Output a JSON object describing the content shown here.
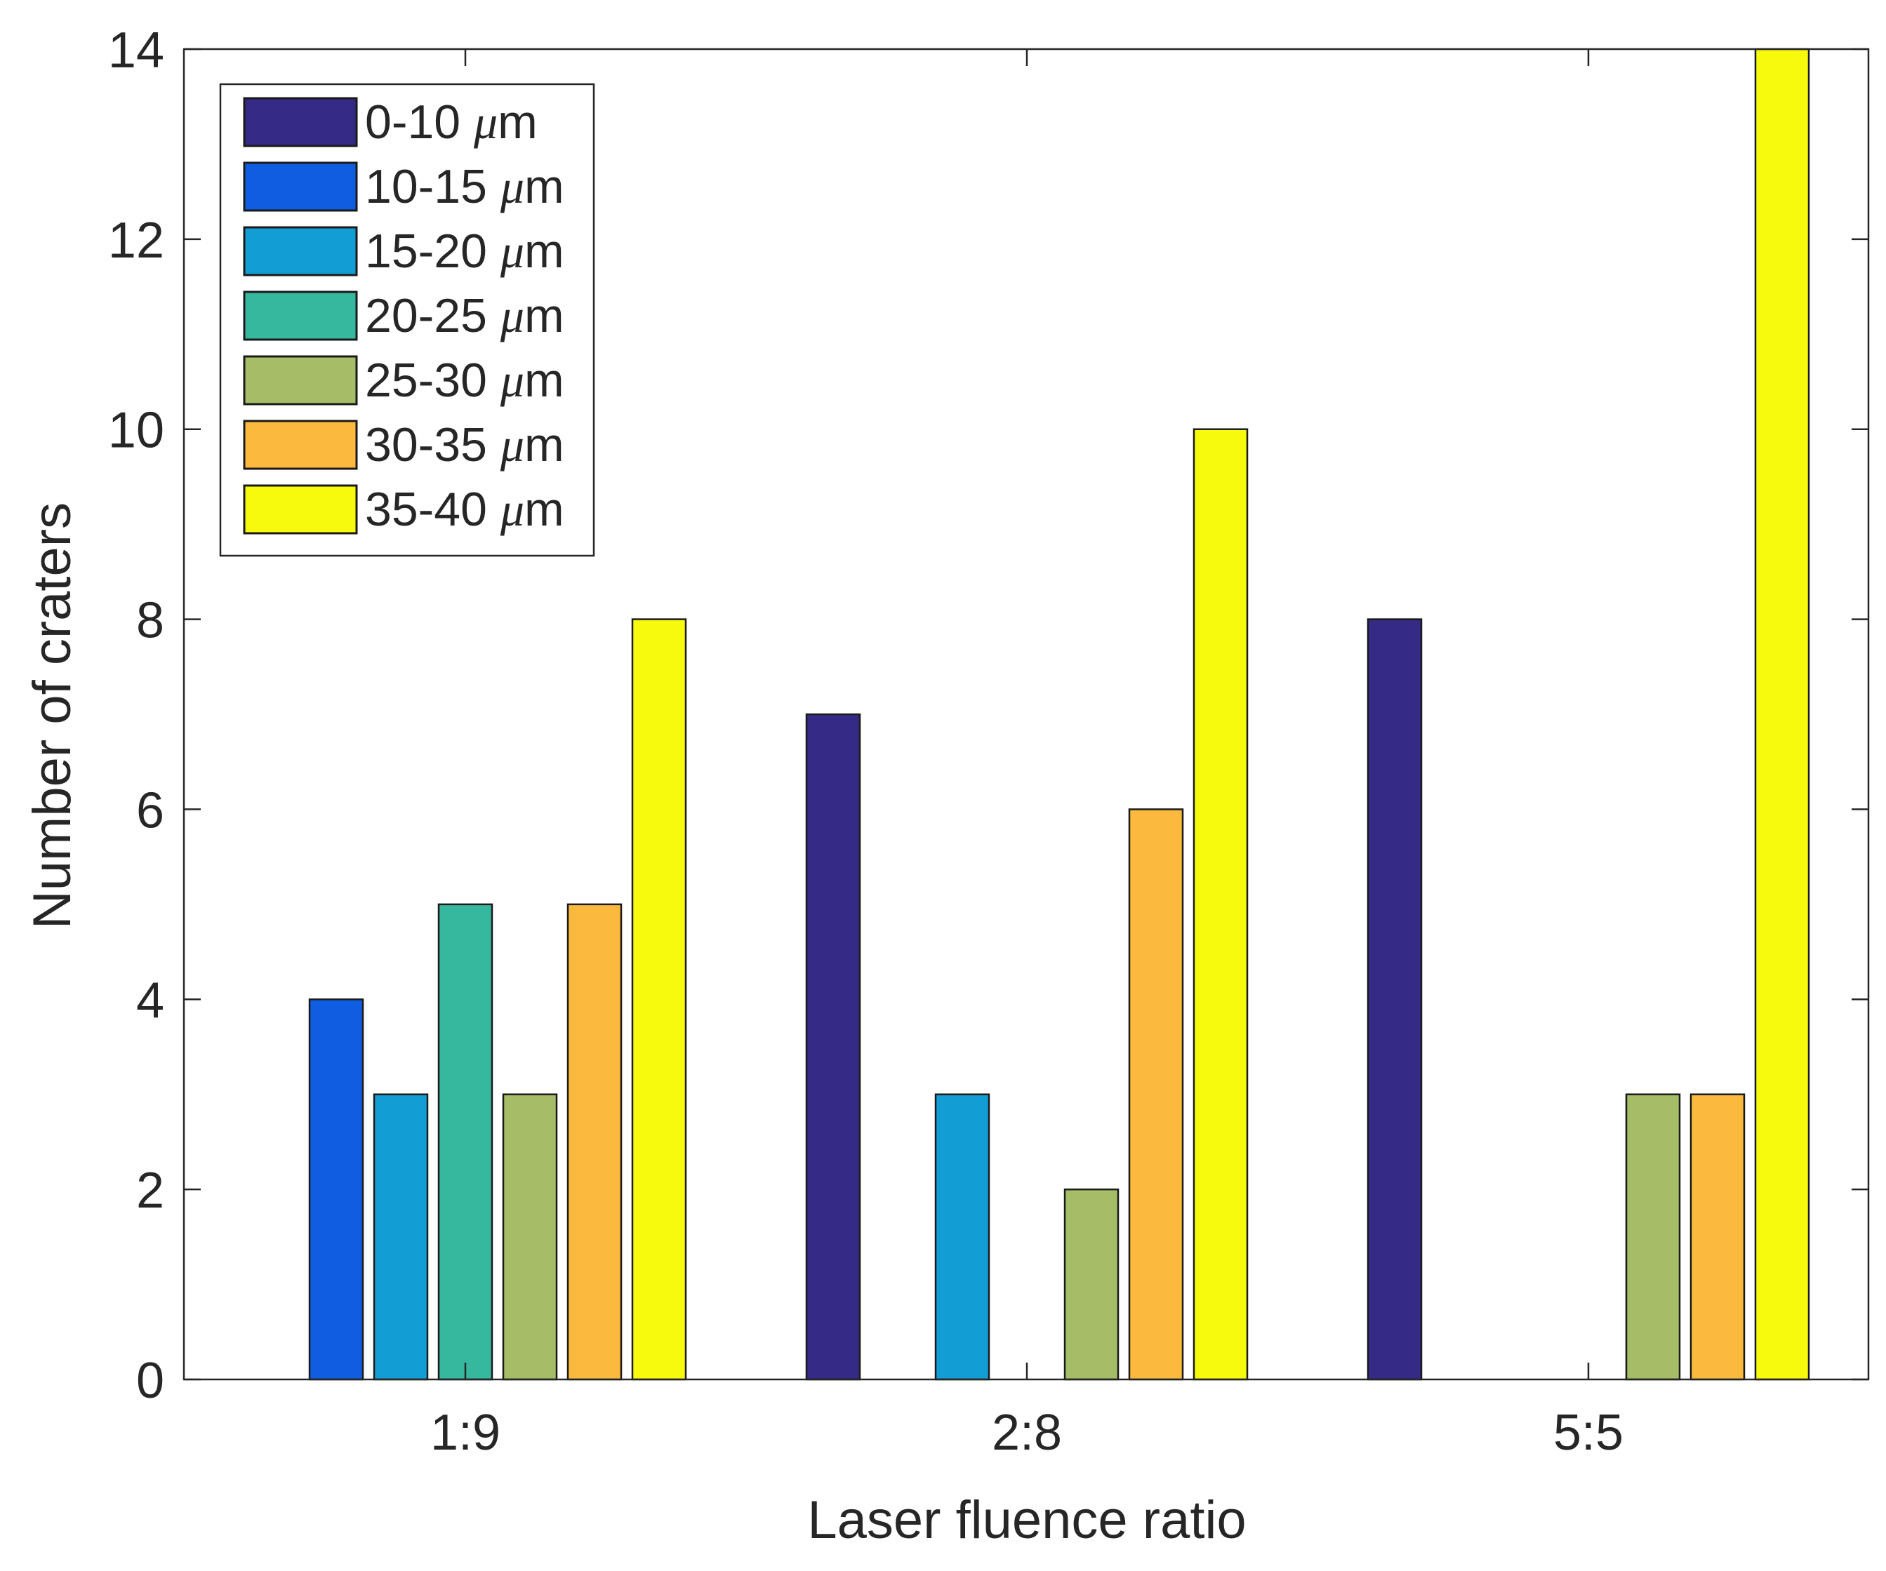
{
  "chart_data": {
    "type": "bar",
    "title": "",
    "xlabel": "Laser fluence ratio",
    "ylabel": "Number of craters",
    "ylim": [
      0,
      14
    ],
    "yticks": [
      0,
      2,
      4,
      6,
      8,
      10,
      12,
      14
    ],
    "categories": [
      "1:9",
      "2:8",
      "5:5"
    ],
    "grid": false,
    "legend_position": "top-left",
    "series": [
      {
        "name": "0-10",
        "unit": "μm",
        "color": "#352a86",
        "values": [
          0,
          7,
          8
        ]
      },
      {
        "name": "10-15",
        "unit": "μm",
        "color": "#0f5de1",
        "values": [
          4,
          0,
          0
        ]
      },
      {
        "name": "15-20",
        "unit": "μm",
        "color": "#129dd4",
        "values": [
          3,
          3,
          0
        ]
      },
      {
        "name": "20-25",
        "unit": "μm",
        "color": "#36b89e",
        "values": [
          5,
          0,
          0
        ]
      },
      {
        "name": "25-30",
        "unit": "μm",
        "color": "#a5bd66",
        "values": [
          3,
          2,
          3
        ]
      },
      {
        "name": "30-35",
        "unit": "μm",
        "color": "#fbba3d",
        "values": [
          5,
          6,
          3
        ]
      },
      {
        "name": "35-40",
        "unit": "μm",
        "color": "#f8fa0d",
        "values": [
          8,
          10,
          14
        ]
      }
    ]
  }
}
